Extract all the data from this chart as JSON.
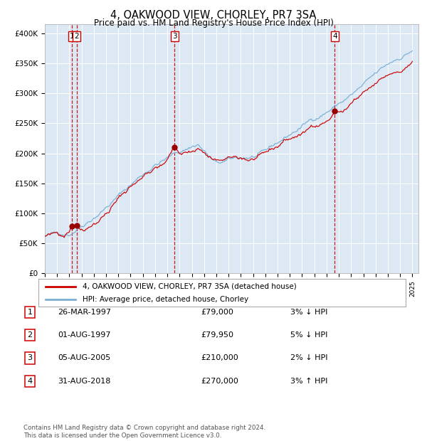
{
  "title": "4, OAKWOOD VIEW, CHORLEY, PR7 3SA",
  "subtitle": "Price paid vs. HM Land Registry's House Price Index (HPI)",
  "plot_bg_color": "#dce9f5",
  "grid_color": "#ffffff",
  "hpi_line_color": "#7bafd4",
  "price_line_color": "#cc0000",
  "marker_color": "#990000",
  "dashed_line_color": "#cc0000",
  "yticks": [
    0,
    50000,
    100000,
    150000,
    200000,
    250000,
    300000,
    350000,
    400000
  ],
  "ytick_labels": [
    "£0",
    "£50K",
    "£100K",
    "£150K",
    "£200K",
    "£250K",
    "£300K",
    "£350K",
    "£400K"
  ],
  "x_start_year": 1995,
  "x_end_year": 2025,
  "sale_dates_num": [
    1997.23,
    1997.59,
    2005.59,
    2018.66
  ],
  "sale_prices": [
    79000,
    79950,
    210000,
    270000
  ],
  "sale_labels": [
    "1",
    "2",
    "3",
    "4"
  ],
  "legend_entries": [
    "4, OAKWOOD VIEW, CHORLEY, PR7 3SA (detached house)",
    "HPI: Average price, detached house, Chorley"
  ],
  "table_rows": [
    {
      "num": "1",
      "date": "26-MAR-1997",
      "price": "£79,000",
      "hpi": "3% ↓ HPI"
    },
    {
      "num": "2",
      "date": "01-AUG-1997",
      "price": "£79,950",
      "hpi": "5% ↓ HPI"
    },
    {
      "num": "3",
      "date": "05-AUG-2005",
      "price": "£210,000",
      "hpi": "2% ↓ HPI"
    },
    {
      "num": "4",
      "date": "31-AUG-2018",
      "price": "£270,000",
      "hpi": "3% ↑ HPI"
    }
  ],
  "footnote": "Contains HM Land Registry data © Crown copyright and database right 2024.\nThis data is licensed under the Open Government Licence v3.0."
}
